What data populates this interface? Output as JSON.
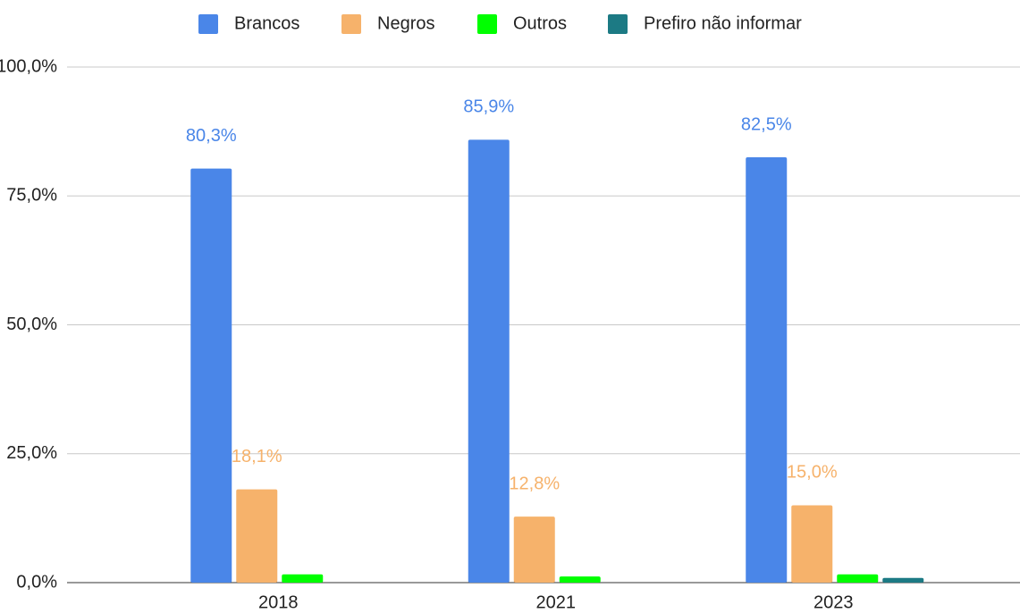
{
  "chart_data": {
    "type": "bar",
    "categories": [
      "2018",
      "2021",
      "2023"
    ],
    "series": [
      {
        "name": "Brancos",
        "color": "#4a86e8",
        "values": [
          80.3,
          85.9,
          82.5
        ],
        "value_labels": [
          "80,3%",
          "85,9%",
          "82,5%"
        ]
      },
      {
        "name": "Negros",
        "color": "#f6b26b",
        "values": [
          18.1,
          12.8,
          15.0
        ],
        "value_labels": [
          "18,1%",
          "12,8%",
          "15,0%"
        ]
      },
      {
        "name": "Outros",
        "color": "#00ff00",
        "values": [
          1.6,
          1.2,
          1.6
        ]
      },
      {
        "name": "Prefiro não informar",
        "color": "#1c7a84",
        "values": [
          0,
          0,
          0.9
        ]
      }
    ],
    "ylim": [
      0,
      100
    ],
    "yticks": [
      {
        "value": 0,
        "label": "0,0%"
      },
      {
        "value": 25,
        "label": "25,0%"
      },
      {
        "value": 50,
        "label": "50,0%"
      },
      {
        "value": 75,
        "label": "75,0%"
      },
      {
        "value": 100,
        "label": "100,0%"
      }
    ],
    "grid": true,
    "legend": "top"
  }
}
